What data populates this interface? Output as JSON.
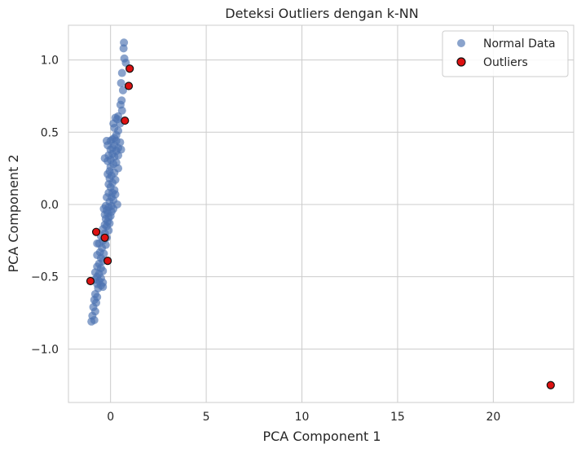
{
  "chart_data": {
    "type": "scatter",
    "title": "Deteksi Outliers dengan k-NN",
    "xlabel": "PCA Component 1",
    "ylabel": "PCA Component 2",
    "xlim": [
      -2.2,
      24.2
    ],
    "ylim": [
      -1.37,
      1.24
    ],
    "xticks": [
      0,
      5,
      10,
      15,
      20
    ],
    "yticks": [
      -1.0,
      -0.5,
      0.0,
      0.5,
      1.0
    ],
    "xtick_labels": [
      "0",
      "5",
      "10",
      "15",
      "20"
    ],
    "ytick_labels": [
      "−1.0",
      "−0.5",
      "0.0",
      "0.5",
      "1.0"
    ],
    "grid": true,
    "legend": {
      "placement": "top-right"
    },
    "series": [
      {
        "name": "Normal Data",
        "color": "#4c72b0",
        "opacity": 0.65,
        "edge": "none",
        "points": [
          [
            0.7,
            1.12
          ],
          [
            0.68,
            1.08
          ],
          [
            0.72,
            1.01
          ],
          [
            0.8,
            0.98
          ],
          [
            0.6,
            0.91
          ],
          [
            0.55,
            0.84
          ],
          [
            0.65,
            0.79
          ],
          [
            0.58,
            0.72
          ],
          [
            0.52,
            0.69
          ],
          [
            0.6,
            0.65
          ],
          [
            0.4,
            0.61
          ],
          [
            0.25,
            0.6
          ],
          [
            0.35,
            0.59
          ],
          [
            0.5,
            0.56
          ],
          [
            0.15,
            0.56
          ],
          [
            0.2,
            0.53
          ],
          [
            0.4,
            0.51
          ],
          [
            0.3,
            0.48
          ],
          [
            0.2,
            0.46
          ],
          [
            0.1,
            0.45
          ],
          [
            0.0,
            0.44
          ],
          [
            -0.2,
            0.44
          ],
          [
            0.3,
            0.44
          ],
          [
            0.5,
            0.43
          ],
          [
            0.2,
            0.41
          ],
          [
            -0.15,
            0.41
          ],
          [
            0.1,
            0.39
          ],
          [
            0.4,
            0.39
          ],
          [
            0.0,
            0.38
          ],
          [
            0.3,
            0.37
          ],
          [
            0.55,
            0.38
          ],
          [
            0.1,
            0.35
          ],
          [
            -0.1,
            0.34
          ],
          [
            0.4,
            0.34
          ],
          [
            0.2,
            0.33
          ],
          [
            -0.3,
            0.32
          ],
          [
            0.0,
            0.31
          ],
          [
            -0.15,
            0.3
          ],
          [
            0.3,
            0.29
          ],
          [
            0.15,
            0.28
          ],
          [
            0.0,
            0.26
          ],
          [
            0.4,
            0.25
          ],
          [
            -0.05,
            0.23
          ],
          [
            0.2,
            0.22
          ],
          [
            -0.15,
            0.21
          ],
          [
            0.05,
            0.2
          ],
          [
            -0.05,
            0.18
          ],
          [
            0.25,
            0.17
          ],
          [
            0.1,
            0.15
          ],
          [
            -0.1,
            0.14
          ],
          [
            0.0,
            0.12
          ],
          [
            0.2,
            0.1
          ],
          [
            0.1,
            0.08
          ],
          [
            -0.1,
            0.08
          ],
          [
            0.25,
            0.07
          ],
          [
            0.05,
            0.05
          ],
          [
            -0.2,
            0.05
          ],
          [
            0.15,
            0.03
          ],
          [
            -0.05,
            0.02
          ],
          [
            0.35,
            0.0
          ],
          [
            0.05,
            -0.01
          ],
          [
            -0.25,
            -0.01
          ],
          [
            -0.1,
            -0.02
          ],
          [
            0.15,
            -0.03
          ],
          [
            -0.35,
            -0.03
          ],
          [
            -0.2,
            -0.04
          ],
          [
            0.05,
            -0.05
          ],
          [
            -0.15,
            -0.06
          ],
          [
            -0.3,
            -0.07
          ],
          [
            0.0,
            -0.08
          ],
          [
            -0.1,
            -0.09
          ],
          [
            -0.25,
            -0.1
          ],
          [
            -0.15,
            -0.12
          ],
          [
            -0.05,
            -0.13
          ],
          [
            -0.3,
            -0.14
          ],
          [
            -0.2,
            -0.15
          ],
          [
            -0.4,
            -0.17
          ],
          [
            -0.1,
            -0.18
          ],
          [
            -0.3,
            -0.2
          ],
          [
            -0.5,
            -0.22
          ],
          [
            -0.2,
            -0.23
          ],
          [
            -0.4,
            -0.25
          ],
          [
            -0.6,
            -0.27
          ],
          [
            -0.7,
            -0.27
          ],
          [
            -0.25,
            -0.28
          ],
          [
            -0.45,
            -0.3
          ],
          [
            -0.55,
            -0.33
          ],
          [
            -0.35,
            -0.34
          ],
          [
            -0.7,
            -0.35
          ],
          [
            -0.5,
            -0.37
          ],
          [
            -0.4,
            -0.39
          ],
          [
            -0.6,
            -0.41
          ],
          [
            -0.7,
            -0.43
          ],
          [
            -0.5,
            -0.44
          ],
          [
            -0.4,
            -0.46
          ],
          [
            -0.8,
            -0.47
          ],
          [
            -0.6,
            -0.48
          ],
          [
            -0.7,
            -0.5
          ],
          [
            -0.5,
            -0.51
          ],
          [
            -0.8,
            -0.52
          ],
          [
            -0.6,
            -0.53
          ],
          [
            -0.4,
            -0.54
          ],
          [
            -0.7,
            -0.55
          ],
          [
            -0.5,
            -0.56
          ],
          [
            -0.4,
            -0.57
          ],
          [
            -0.65,
            -0.58
          ],
          [
            -0.8,
            -0.62
          ],
          [
            -0.7,
            -0.64
          ],
          [
            -0.85,
            -0.66
          ],
          [
            -0.75,
            -0.68
          ],
          [
            -0.9,
            -0.71
          ],
          [
            -0.8,
            -0.74
          ],
          [
            -0.95,
            -0.77
          ],
          [
            -0.85,
            -0.8
          ],
          [
            -1.0,
            -0.81
          ]
        ]
      },
      {
        "name": "Outliers",
        "color": "#dd1111",
        "edge": "#111111",
        "points": [
          [
            1.0,
            0.94
          ],
          [
            0.95,
            0.82
          ],
          [
            0.75,
            0.58
          ],
          [
            -0.75,
            -0.19
          ],
          [
            -0.3,
            -0.23
          ],
          [
            -0.15,
            -0.39
          ],
          [
            -1.05,
            -0.53
          ],
          [
            23.0,
            -1.25
          ]
        ]
      }
    ]
  }
}
